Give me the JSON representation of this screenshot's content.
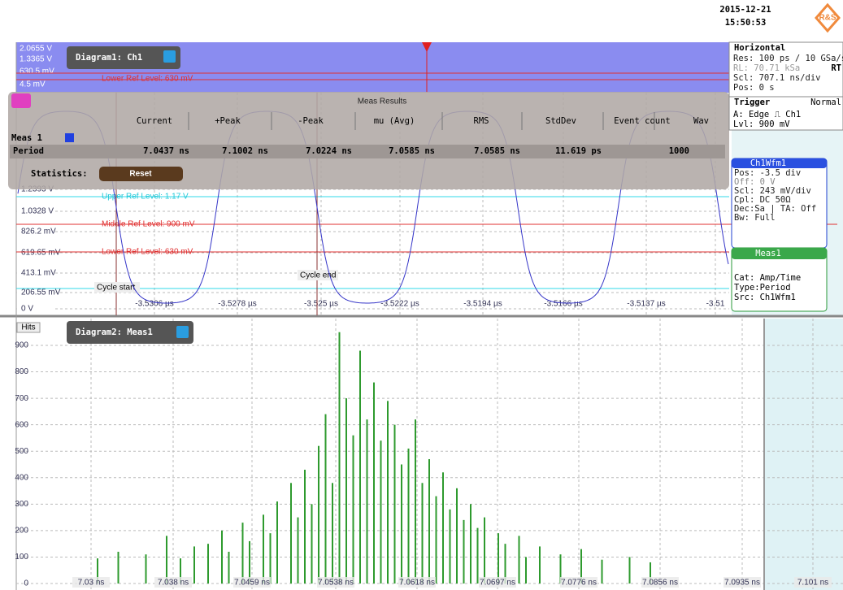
{
  "header": {
    "date": "2015-12-21",
    "time": "15:50:53",
    "logo": "R&S"
  },
  "diagram1": {
    "title": "Diagram1: Ch1",
    "overview_labels": [
      "2.0655 V",
      "1.3365 V",
      "630.5 mV",
      "4.5 mV"
    ],
    "overview_ref": "Lower Ref Level: 630 mV",
    "y_labels": [
      "1.2393 V",
      "1.0328 V",
      "826.2 mV",
      "619.65 mV",
      "413.1 mV",
      "206.55 mV",
      "0 V"
    ],
    "x_labels": [
      "-3.5306 µs",
      "-3.5278 µs",
      "-3.525 µs",
      "-3.5222 µs",
      "-3.5194 µs",
      "-3.5166 µs",
      "-3.5137 µs",
      "-3.51"
    ],
    "ref_upper": "Upper Ref Level: 1.17 V",
    "ref_middle": "Middle Ref Level: 900 mV",
    "ref_lower": "Lower Ref Level: 630 mV",
    "cycle_start": "Cycle start",
    "cycle_end": "Cycle end"
  },
  "meas_results": {
    "title": "Meas Results",
    "columns": [
      "Current",
      "+Peak",
      "-Peak",
      "mu (Avg)",
      "RMS",
      "StdDev",
      "Event count",
      "Wav"
    ],
    "group": "Meas 1",
    "row_label": "Period",
    "values": [
      "7.0437 ns",
      "7.1002 ns",
      "7.0224 ns",
      "7.0585 ns",
      "7.0585 ns",
      "11.619 ps",
      "1000"
    ],
    "statistics": "Statistics:",
    "reset": "Reset"
  },
  "horizontal": {
    "title": "Horizontal",
    "lines": [
      "Res: 100 ps / 10 GSa/s",
      "RL: 70.71 kSa",
      "Scl: 707.1 ns/div",
      "Pos: 0 s"
    ],
    "rt": "RT",
    "trigger": "Trigger",
    "mode": "Normal",
    "trigger_lines": [
      "A:  Edge ⎍ Ch1",
      "Lvl: 900 mV"
    ]
  },
  "ch1wfm1": {
    "title": "Ch1Wfm1",
    "lines": [
      "Pos: -3.5 div",
      "Off: 0 V",
      "Scl: 243 mV/div",
      "Cpl: DC 50Ω",
      "Dec:Sa | TA: Off",
      "Bw: Full"
    ]
  },
  "meas1": {
    "title": "Meas1",
    "lines": [
      "Cat: Amp/Time",
      "Type:Period",
      "Src: Ch1Wfm1"
    ]
  },
  "diagram2": {
    "title": "Diagram2: Meas1",
    "y_label": "Hits",
    "ylim": [
      0,
      900
    ],
    "yticks": [
      0,
      100,
      200,
      300,
      400,
      500,
      600,
      700,
      800,
      900
    ],
    "x_labels": [
      "7.03 ns",
      "7.038 ns",
      "7.0459 ns",
      "7.0538 ns",
      "7.0618 ns",
      "7.0697 ns",
      "7.0776 ns",
      "7.0856 ns",
      "7.0935 ns",
      "7.101 ns"
    ],
    "hits": [
      0,
      0,
      0,
      0,
      95,
      0,
      0,
      120,
      0,
      0,
      0,
      110,
      0,
      0,
      180,
      0,
      95,
      0,
      140,
      0,
      150,
      0,
      200,
      120,
      0,
      230,
      160,
      0,
      260,
      190,
      310,
      0,
      380,
      250,
      430,
      300,
      520,
      640,
      380,
      950,
      700,
      560,
      880,
      620,
      760,
      540,
      690,
      600,
      450,
      510,
      620,
      380,
      470,
      330,
      420,
      280,
      360,
      240,
      300,
      210,
      250,
      0,
      190,
      150,
      0,
      180,
      100,
      0,
      140,
      0,
      0,
      110,
      0,
      0,
      130,
      0,
      0,
      90,
      0,
      0,
      0,
      100,
      0,
      0,
      80,
      0,
      0,
      0,
      0,
      0,
      0,
      0,
      0,
      0,
      0,
      0,
      0,
      0,
      0,
      0
    ]
  }
}
